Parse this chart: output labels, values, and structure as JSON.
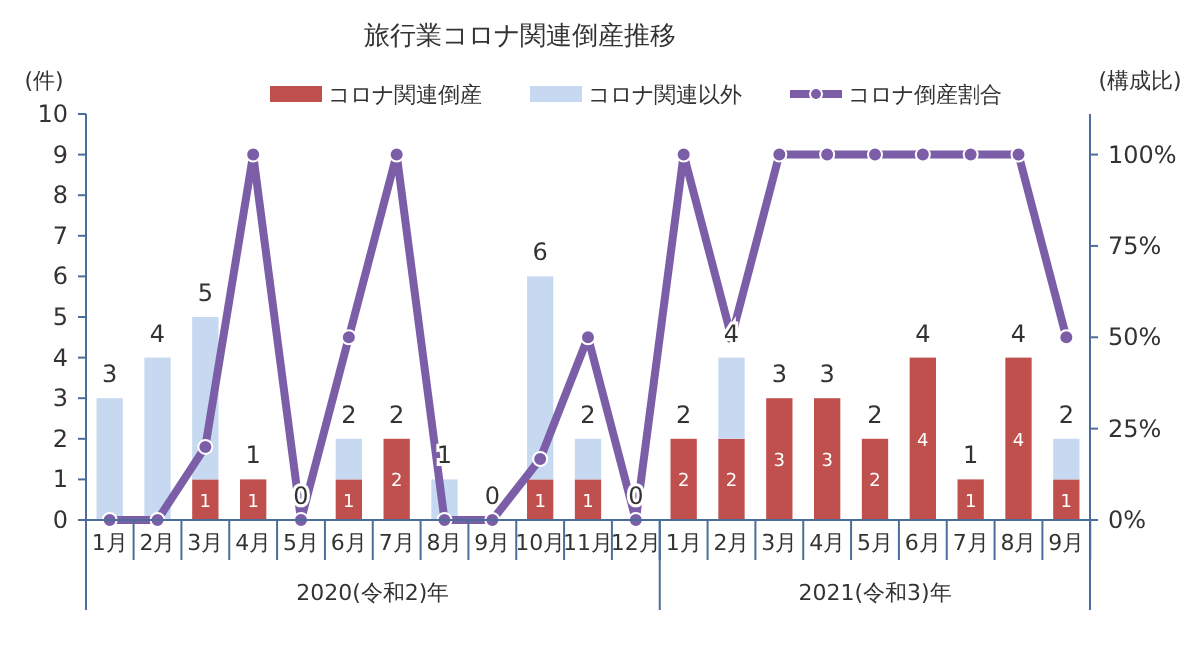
{
  "chart_data": {
    "type": "bar",
    "title": "旅行業コロナ関連倒産推移",
    "ylabel": "(件)",
    "y2label": "(構成比)",
    "categories": [
      "1月",
      "2月",
      "3月",
      "4月",
      "5月",
      "6月",
      "7月",
      "8月",
      "9月",
      "10月",
      "11月",
      "12月",
      "1月",
      "2月",
      "3月",
      "4月",
      "5月",
      "6月",
      "7月",
      "8月",
      "9月"
    ],
    "stacked": true,
    "legend": "top",
    "series": [
      {
        "name": "コロナ関連倒産",
        "color": "#c0504d",
        "values": [
          0,
          0,
          1,
          1,
          0,
          1,
          2,
          0,
          0,
          1,
          1,
          0,
          2,
          2,
          3,
          3,
          2,
          4,
          1,
          4,
          1
        ],
        "value_labels": [
          null,
          null,
          "1",
          "1",
          null,
          "1",
          "2",
          null,
          null,
          "1",
          "1",
          null,
          "2",
          "2",
          "3",
          "3",
          "2",
          "4",
          "1",
          "4",
          "1"
        ]
      },
      {
        "name": "コロナ関連以外",
        "color": "#c6d9f0",
        "values": [
          3,
          4,
          4,
          0,
          0,
          1,
          0,
          1,
          0,
          5,
          1,
          0,
          0,
          2,
          0,
          0,
          0,
          0,
          0,
          0,
          1
        ]
      },
      {
        "name": "コロナ倒産割合",
        "type": "line",
        "axis": "y2",
        "color": "#7b5ea7",
        "marker": "circle",
        "values": [
          0,
          0,
          20,
          100,
          0,
          50,
          100,
          0,
          0,
          16.7,
          50,
          0,
          100,
          50,
          100,
          100,
          100,
          100,
          100,
          100,
          50
        ]
      }
    ],
    "totals": [
      "3",
      "4",
      "5",
      "1",
      "0",
      "2",
      "2",
      "1",
      "0",
      "6",
      "2",
      "0",
      "2",
      "4",
      "3",
      "3",
      "2",
      "4",
      "1",
      "4",
      "2"
    ],
    "ylim": [
      0,
      10
    ],
    "yticks": [
      0,
      1,
      2,
      3,
      4,
      5,
      6,
      7,
      8,
      9,
      10
    ],
    "y2lim": [
      0,
      111.1
    ],
    "y2ticks": [
      {
        "value": 0,
        "label": "0%"
      },
      {
        "value": 25,
        "label": "25%"
      },
      {
        "value": 50,
        "label": "50%"
      },
      {
        "value": 75,
        "label": "75%"
      },
      {
        "value": 100,
        "label": "100%"
      }
    ],
    "annotations": [
      "2020(令和2)年",
      "2021(令和3)年"
    ]
  }
}
